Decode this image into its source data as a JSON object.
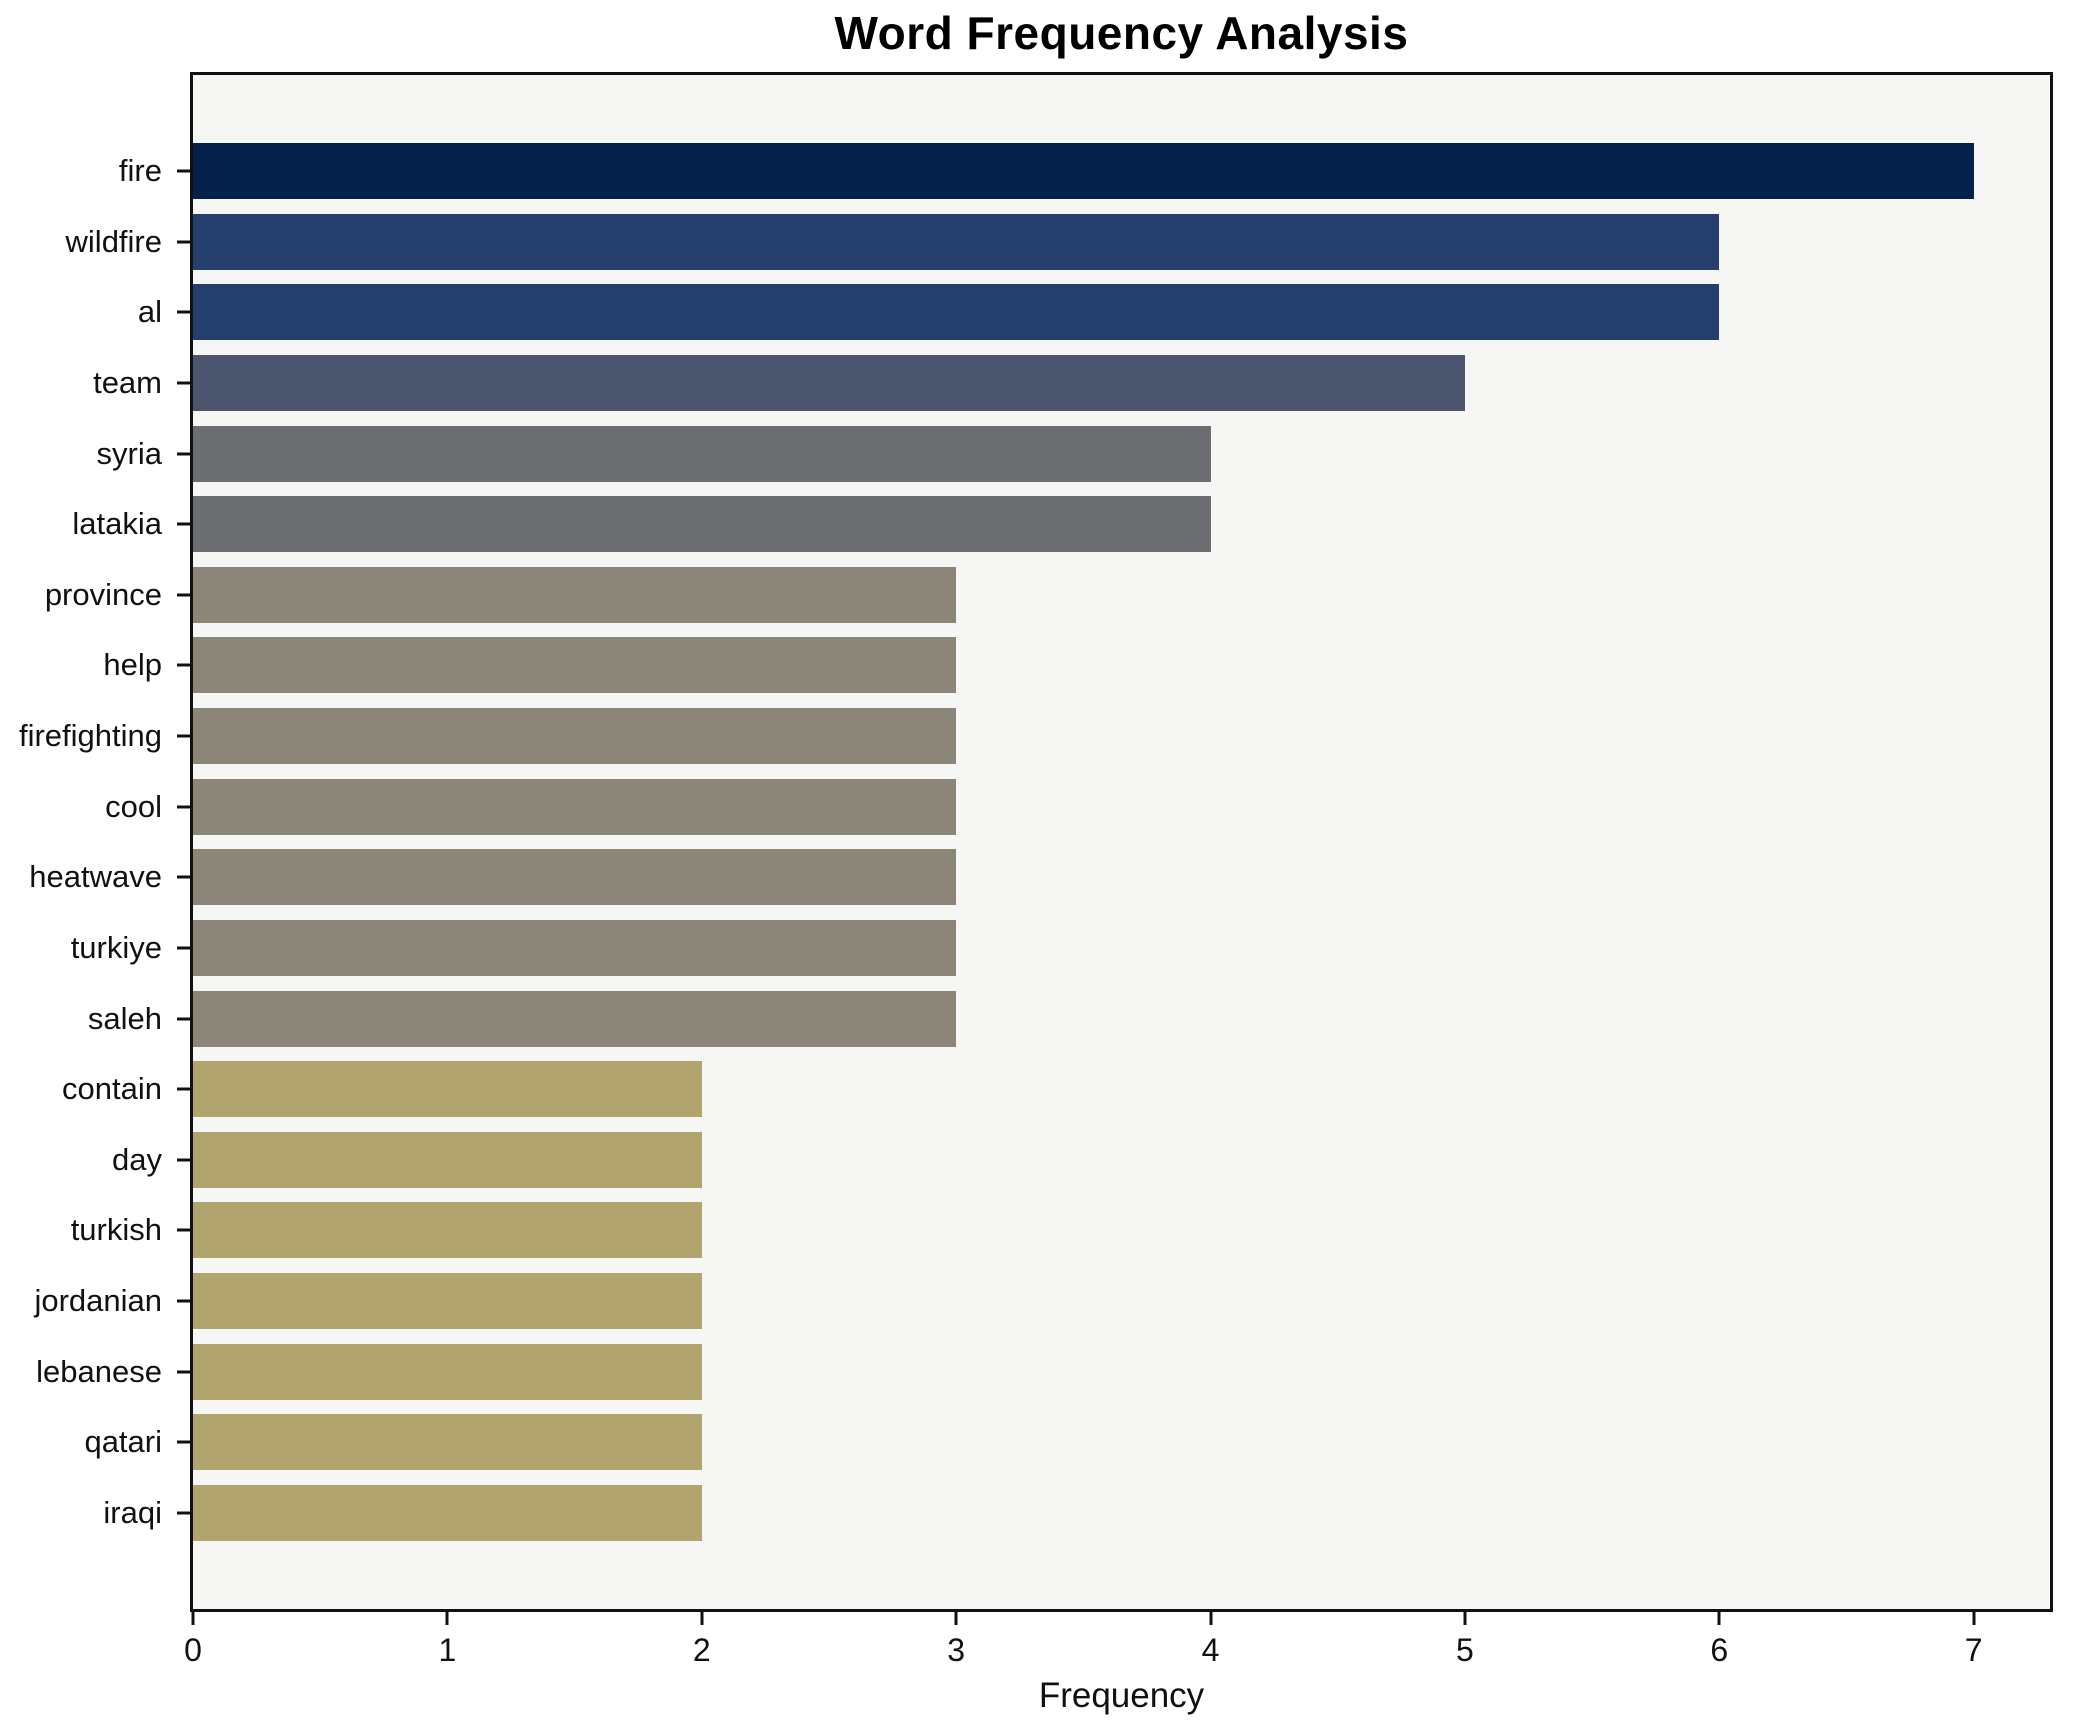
{
  "chart_data": {
    "type": "bar",
    "orientation": "horizontal",
    "title": "Word Frequency Analysis",
    "xlabel": "Frequency",
    "ylabel": "",
    "categories": [
      "fire",
      "wildfire",
      "al",
      "team",
      "syria",
      "latakia",
      "province",
      "help",
      "firefighting",
      "cool",
      "heatwave",
      "turkiye",
      "saleh",
      "contain",
      "day",
      "turkish",
      "jordanian",
      "lebanese",
      "qatari",
      "iraqi"
    ],
    "values": [
      7,
      6,
      6,
      5,
      4,
      4,
      3,
      3,
      3,
      3,
      3,
      3,
      3,
      2,
      2,
      2,
      2,
      2,
      2,
      2
    ],
    "bar_colors": [
      "#04214c",
      "#243f6e",
      "#243f6e",
      "#4c556e",
      "#6c6d70",
      "#6c6d70",
      "#8b8677",
      "#8b8677",
      "#8b8677",
      "#8b8677",
      "#8b8677",
      "#8b8677",
      "#8b8677",
      "#b1a46d",
      "#b1a46d",
      "#b1a46d",
      "#b1a46d",
      "#b1a46d",
      "#b1a46d",
      "#b1a46d"
    ],
    "x_ticks": [
      0,
      1,
      2,
      3,
      4,
      5,
      6,
      7
    ],
    "xlim": [
      0,
      7.3
    ],
    "grid": false,
    "legend": null,
    "plot_background": "#f6f6f4",
    "frame_color": "#111111"
  }
}
